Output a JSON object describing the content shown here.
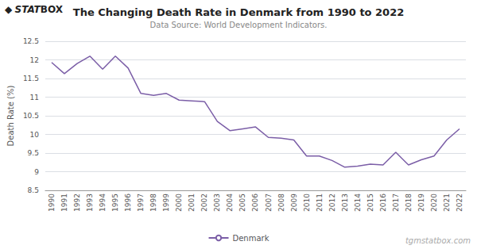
{
  "chart_data": {
    "type": "line",
    "title": "The Changing Death Rate in Denmark from 1990 to 2022",
    "subtitle": "Data Source: World Development Indicators.",
    "ylabel": "Death Rate (%)",
    "annotations": [
      "◆",
      "STAT",
      "BOX",
      "tgmstatbox.com"
    ],
    "categories": [
      "1990",
      "1991",
      "1992",
      "1993",
      "1994",
      "1995",
      "1996",
      "1997",
      "1998",
      "1999",
      "2000",
      "2001",
      "2002",
      "2003",
      "2004",
      "2005",
      "2006",
      "2007",
      "2008",
      "2009",
      "2010",
      "2011",
      "2012",
      "2013",
      "2014",
      "2015",
      "2016",
      "2017",
      "2018",
      "2019",
      "2020",
      "2021",
      "2022"
    ],
    "series": [
      {
        "name": "Denmark",
        "color": "#7B5EA7",
        "values": [
          11.93,
          11.63,
          11.9,
          12.1,
          11.75,
          12.1,
          11.78,
          11.1,
          11.05,
          11.1,
          10.92,
          10.9,
          10.88,
          10.35,
          10.1,
          10.15,
          10.2,
          9.92,
          9.9,
          9.85,
          9.42,
          9.42,
          9.3,
          9.12,
          9.15,
          9.2,
          9.18,
          9.52,
          9.18,
          9.32,
          9.42,
          9.85,
          10.15
        ]
      }
    ],
    "ylim": [
      8.5,
      12.5
    ],
    "yticks": [
      8.5,
      9,
      9.5,
      10,
      10.5,
      11,
      11.5,
      12,
      12.5
    ],
    "grid": true,
    "legend": "bottom"
  }
}
